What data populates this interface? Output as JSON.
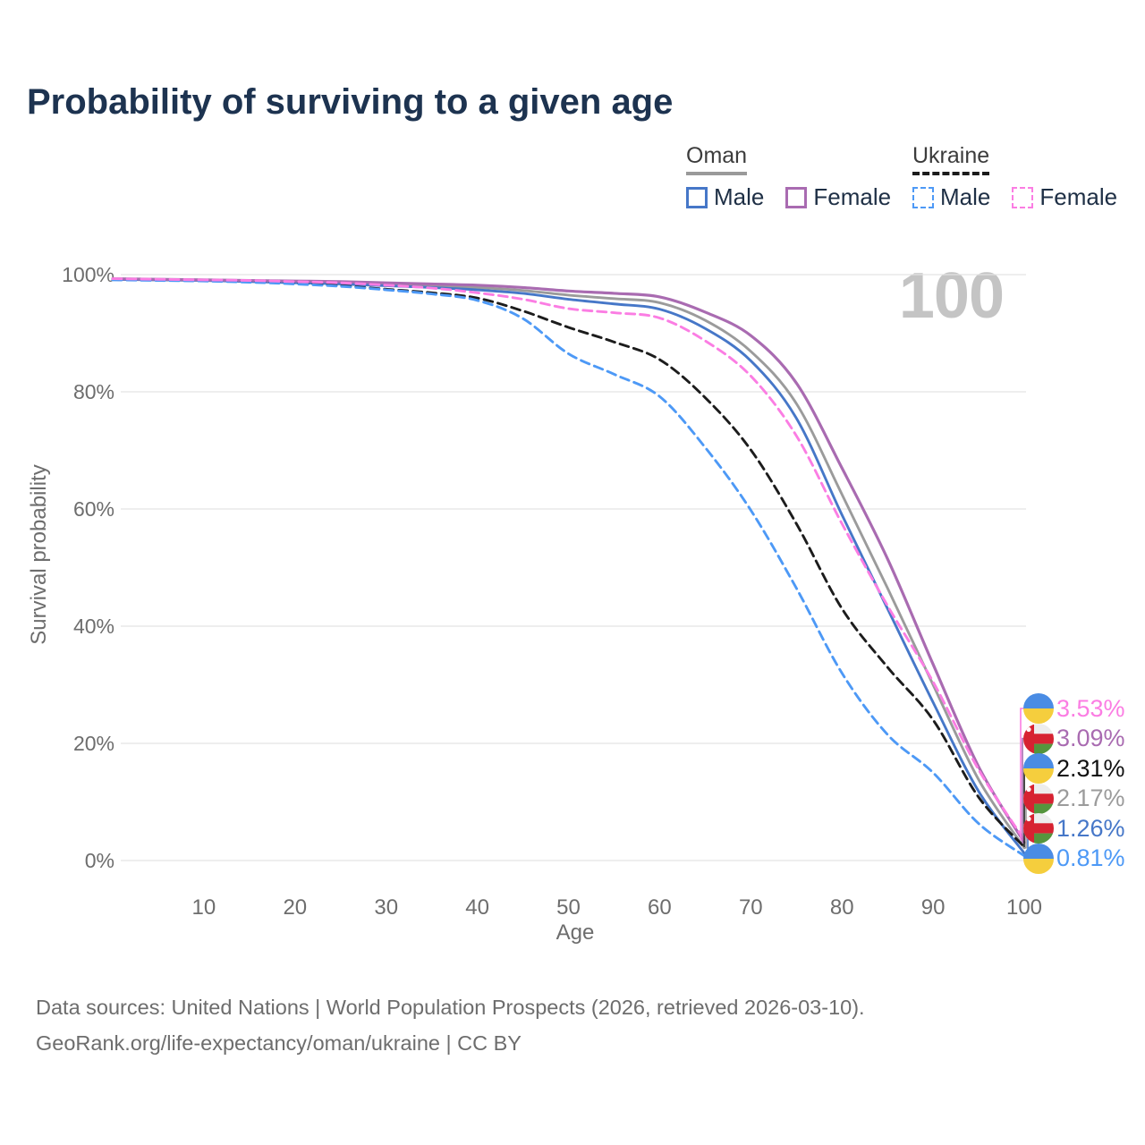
{
  "header": {
    "title": "Probability of surviving to a given age"
  },
  "legend": {
    "groups": [
      {
        "id": "oman",
        "label": "Oman",
        "line_style": "solid",
        "underline_color": "#9a9a9a",
        "items": [
          {
            "id": "oman-male",
            "label": "Male",
            "color": "#4677C8",
            "dashed": false
          },
          {
            "id": "oman-female",
            "label": "Female",
            "color": "#A96BB1",
            "dashed": false
          }
        ]
      },
      {
        "id": "ukraine",
        "label": "Ukraine",
        "line_style": "dashed",
        "underline_color": "#1b1b1b",
        "items": [
          {
            "id": "ukraine-male",
            "label": "Male",
            "color": "#4D99F6",
            "dashed": true
          },
          {
            "id": "ukraine-female",
            "label": "Female",
            "color": "#FB7DE3",
            "dashed": true
          }
        ]
      }
    ]
  },
  "chart_data": {
    "type": "line",
    "title": "Probability of surviving to a given age",
    "xlabel": "Age",
    "ylabel": "Survival probability",
    "xlim": [
      0,
      100
    ],
    "ylim": [
      0,
      100
    ],
    "grid": "horizontal",
    "legend_position": "top-right",
    "watermark": "100",
    "x_ticks": [
      10,
      20,
      30,
      40,
      50,
      60,
      70,
      80,
      90,
      100
    ],
    "y_ticks": [
      0,
      20,
      40,
      60,
      80,
      100
    ],
    "y_tick_labels": [
      "0%",
      "20%",
      "40%",
      "60%",
      "80%",
      "100%"
    ],
    "x": [
      0,
      5,
      10,
      15,
      20,
      25,
      30,
      35,
      40,
      45,
      50,
      55,
      60,
      65,
      70,
      75,
      80,
      85,
      90,
      95,
      100
    ],
    "series": [
      {
        "name": "Oman",
        "country": "Oman",
        "sex": "both",
        "color": "#9B9B9B",
        "dash": "solid",
        "flag": "oman",
        "end_label": "2.17%",
        "values": [
          99.2,
          99.1,
          99.0,
          98.9,
          98.8,
          98.6,
          98.4,
          98.1,
          97.8,
          97.3,
          96.5,
          95.9,
          95.2,
          92.2,
          86.9,
          78.0,
          62.5,
          46.5,
          30.0,
          13.8,
          2.17
        ]
      },
      {
        "name": "Oman Male",
        "country": "Oman",
        "sex": "male",
        "color": "#4677C8",
        "dash": "solid",
        "flag": "oman",
        "end_label": "1.26%",
        "values": [
          99.2,
          99.1,
          99.0,
          98.8,
          98.6,
          98.4,
          98.1,
          97.8,
          97.4,
          96.8,
          95.8,
          95.0,
          94.1,
          90.8,
          85.3,
          75.5,
          59.0,
          43.0,
          27.0,
          11.8,
          1.26
        ]
      },
      {
        "name": "Oman Female",
        "country": "Oman",
        "sex": "female",
        "color": "#A96BB1",
        "dash": "solid",
        "flag": "oman",
        "end_label": "3.09%",
        "values": [
          99.3,
          99.2,
          99.1,
          99.0,
          98.9,
          98.8,
          98.6,
          98.4,
          98.2,
          97.8,
          97.2,
          96.8,
          96.2,
          93.6,
          89.6,
          81.5,
          67.0,
          51.5,
          33.5,
          16.0,
          3.09
        ]
      },
      {
        "name": "Ukraine",
        "country": "Ukraine",
        "sex": "both",
        "color": "#1C1C1C",
        "dash": "dashed",
        "flag": "ukraine",
        "end_label": "2.31%",
        "values": [
          99.2,
          99.1,
          99.0,
          98.8,
          98.5,
          98.1,
          97.5,
          96.9,
          96.0,
          93.8,
          91.0,
          88.5,
          85.5,
          79.0,
          70.1,
          57.5,
          43.0,
          33.0,
          24.0,
          10.8,
          2.31
        ]
      },
      {
        "name": "Ukraine Male",
        "country": "Ukraine",
        "sex": "male",
        "color": "#4D99F6",
        "dash": "dashed",
        "flag": "ukraine",
        "end_label": "0.81%",
        "values": [
          99.1,
          99.0,
          98.9,
          98.7,
          98.4,
          98.0,
          97.4,
          96.7,
          95.6,
          92.5,
          86.5,
          83.0,
          79.2,
          70.5,
          59.8,
          46.5,
          32.0,
          21.5,
          15.0,
          6.3,
          0.81
        ]
      },
      {
        "name": "Ukraine Female",
        "country": "Ukraine",
        "sex": "female",
        "color": "#FB7DE3",
        "dash": "dashed",
        "flag": "ukraine",
        "end_label": "3.53%",
        "values": [
          99.3,
          99.2,
          99.1,
          99.0,
          98.8,
          98.6,
          98.2,
          97.7,
          96.9,
          95.8,
          94.2,
          93.5,
          92.6,
          88.7,
          82.7,
          72.5,
          57.5,
          43.5,
          30.5,
          15.5,
          3.53
        ]
      }
    ],
    "end_labels_top_to_bottom": [
      "3.53%",
      "3.09%",
      "2.31%",
      "2.17%",
      "1.26%",
      "0.81%"
    ]
  },
  "flags": {
    "ukraine": {
      "top": "#4A8CE4",
      "bottom": "#F5CE3D"
    },
    "oman": {
      "red": "#D72332",
      "green": "#55953D",
      "white": "#EDEDED"
    }
  },
  "footer": {
    "line1": "Data sources: United Nations | World Population Prospects (2026, retrieved 2026-03-10).",
    "line2": "GeoRank.org/life-expectancy/oman/ukraine | CC BY"
  }
}
